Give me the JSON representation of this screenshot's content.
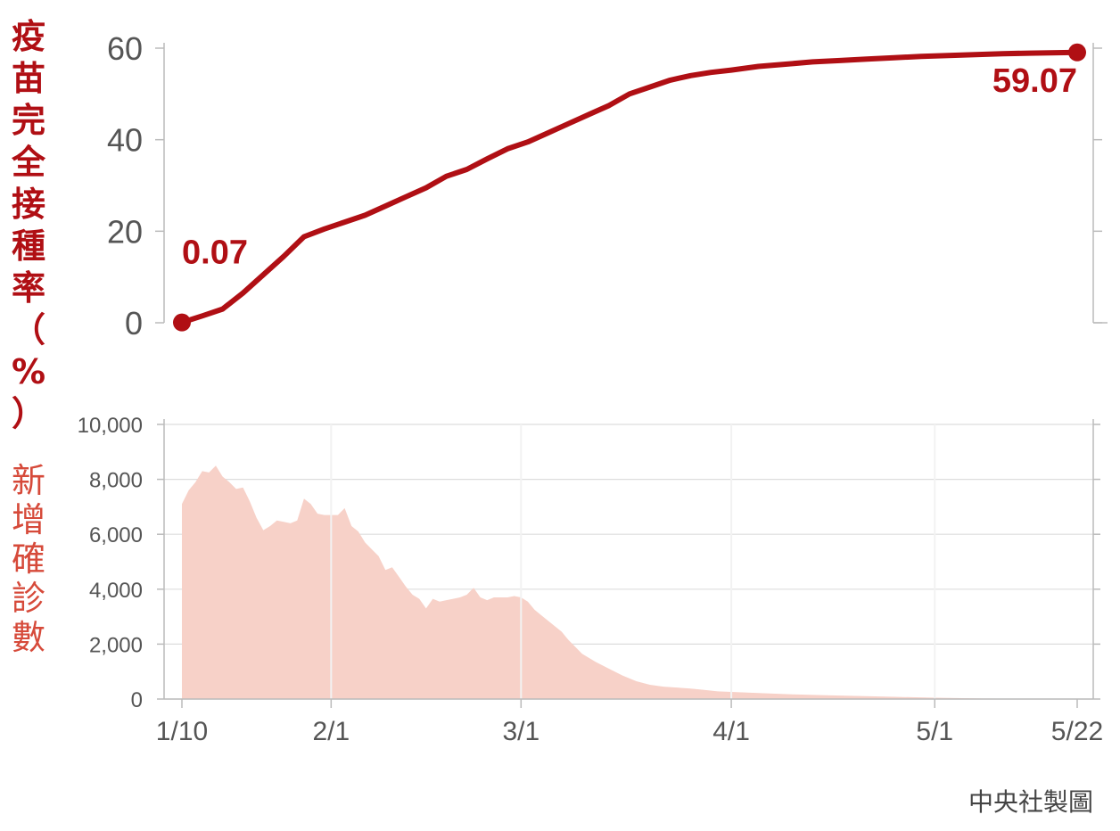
{
  "colors": {
    "vaccine_line": "#b00f14",
    "vaccine_label": "#b00f14",
    "cases_area": "#f7d1c8",
    "cases_label": "#d64a3a",
    "axis": "#bbbbbb",
    "tick_text": "#555555",
    "grid": "#dddddd"
  },
  "credit": "中央社製圖",
  "chart_data": [
    {
      "type": "line",
      "ylabel": "疫苗完全接種率（%）",
      "ylabel_chars": [
        "疫",
        "苗",
        "完",
        "全",
        "接",
        "種",
        "率",
        "（",
        "%",
        "）"
      ],
      "ylim": [
        0,
        60
      ],
      "yticks": [
        0,
        20,
        40,
        60
      ],
      "ytick_labels": [
        "0",
        "20",
        "40",
        "60"
      ],
      "grid": false,
      "x_range": [
        "1/10",
        "5/22"
      ],
      "series": [
        {
          "x": [
            "1/10",
            "1/13",
            "1/16",
            "1/19",
            "1/22",
            "1/25",
            "1/28",
            "1/31",
            "2/3",
            "2/6",
            "2/9",
            "2/12",
            "2/15",
            "2/18",
            "2/21",
            "2/24",
            "2/27",
            "3/2",
            "3/5",
            "3/8",
            "3/11",
            "3/14",
            "3/17",
            "3/20",
            "3/23",
            "3/26",
            "3/29",
            "4/1",
            "4/5",
            "4/9",
            "4/13",
            "4/17",
            "4/21",
            "4/25",
            "4/29",
            "5/3",
            "5/7",
            "5/11",
            "5/15",
            "5/19",
            "5/22"
          ],
          "y": [
            0.07,
            1.5,
            3.0,
            6.5,
            10.5,
            14.5,
            18.8,
            20.5,
            22.0,
            23.5,
            25.5,
            27.5,
            29.5,
            32.0,
            33.5,
            35.8,
            38.0,
            39.5,
            41.5,
            43.5,
            45.5,
            47.5,
            50.0,
            51.5,
            53.0,
            54.0,
            54.7,
            55.2,
            56.0,
            56.5,
            57.0,
            57.3,
            57.6,
            57.9,
            58.2,
            58.4,
            58.6,
            58.8,
            58.9,
            59.0,
            59.07
          ]
        }
      ],
      "annotations": [
        {
          "x": "1/10",
          "y": 0.07,
          "text": "0.07"
        },
        {
          "x": "5/22",
          "y": 59.07,
          "text": "59.07"
        }
      ]
    },
    {
      "type": "area",
      "ylabel": "新增確診數",
      "ylabel_chars": [
        "新",
        "增",
        "確",
        "診",
        "數"
      ],
      "ylim": [
        0,
        10000
      ],
      "yticks": [
        0,
        2000,
        4000,
        6000,
        8000,
        10000
      ],
      "ytick_labels": [
        "0",
        "2,000",
        "4,000",
        "6,000",
        "8,000",
        "10,000"
      ],
      "grid": true,
      "xticks": [
        "1/10",
        "2/1",
        "3/1",
        "4/1",
        "5/1",
        "5/22"
      ],
      "series": [
        {
          "x": [
            "1/10",
            "1/11",
            "1/12",
            "1/13",
            "1/14",
            "1/15",
            "1/16",
            "1/17",
            "1/18",
            "1/19",
            "1/20",
            "1/21",
            "1/22",
            "1/23",
            "1/24",
            "1/25",
            "1/26",
            "1/27",
            "1/28",
            "1/29",
            "1/30",
            "1/31",
            "2/1",
            "2/2",
            "2/3",
            "2/4",
            "2/5",
            "2/6",
            "2/7",
            "2/8",
            "2/9",
            "2/10",
            "2/11",
            "2/12",
            "2/13",
            "2/14",
            "2/15",
            "2/16",
            "2/17",
            "2/18",
            "2/19",
            "2/20",
            "2/21",
            "2/22",
            "2/23",
            "2/24",
            "2/25",
            "2/26",
            "2/27",
            "2/28",
            "3/1",
            "3/2",
            "3/3",
            "3/4",
            "3/5",
            "3/6",
            "3/7",
            "3/8",
            "3/9",
            "3/10",
            "3/12",
            "3/14",
            "3/16",
            "3/18",
            "3/20",
            "3/22",
            "3/24",
            "3/26",
            "3/28",
            "3/30",
            "4/1",
            "4/5",
            "4/10",
            "4/15",
            "4/20",
            "4/25",
            "5/1",
            "5/8",
            "5/15",
            "5/22"
          ],
          "y": [
            7100,
            7600,
            7900,
            8300,
            8250,
            8500,
            8100,
            7900,
            7650,
            7700,
            7200,
            6600,
            6150,
            6300,
            6500,
            6450,
            6400,
            6500,
            7300,
            7100,
            6750,
            6700,
            6700,
            6700,
            6950,
            6300,
            6100,
            5700,
            5450,
            5200,
            4700,
            4800,
            4450,
            4100,
            3800,
            3650,
            3300,
            3650,
            3550,
            3600,
            3650,
            3700,
            3800,
            4050,
            3700,
            3600,
            3700,
            3700,
            3700,
            3750,
            3700,
            3550,
            3250,
            3050,
            2850,
            2650,
            2450,
            2150,
            1900,
            1650,
            1350,
            1100,
            850,
            650,
            520,
            450,
            420,
            380,
            330,
            280,
            260,
            220,
            170,
            140,
            110,
            80,
            50,
            20,
            10,
            5
          ]
        }
      ]
    }
  ]
}
